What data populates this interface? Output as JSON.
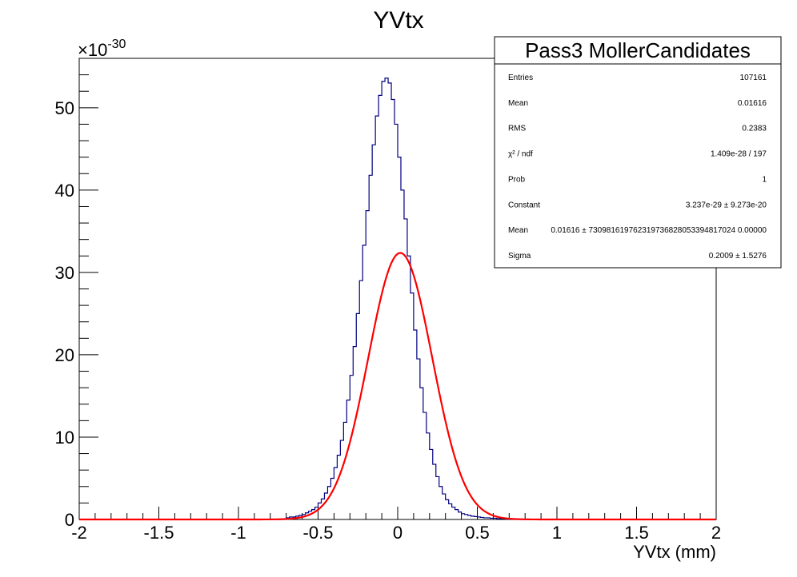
{
  "chart_data": {
    "type": "histogram",
    "title": "YVtx",
    "xlabel": "YVtx (mm)",
    "ylabel": "",
    "y_multiplier": "×10",
    "y_multiplier_exp": "-30",
    "xlim": [
      -2,
      2
    ],
    "ylim": [
      0,
      56
    ],
    "x_ticks": [
      -2,
      -1.5,
      -1,
      -0.5,
      0,
      0.5,
      1,
      1.5,
      2
    ],
    "x_tick_labels": [
      "-2",
      "-1.5",
      "-1",
      "-0.5",
      "0",
      "0.5",
      "1",
      "1.5",
      "2"
    ],
    "y_ticks": [
      0,
      10,
      20,
      30,
      40,
      50
    ],
    "y_tick_labels": [
      "0",
      "10",
      "20",
      "30",
      "40",
      "50"
    ],
    "grid": false,
    "histogram": {
      "color": "#000080",
      "bin_width": 0.02,
      "bin_centers": [
        -0.69,
        -0.67,
        -0.65,
        -0.63,
        -0.61,
        -0.59,
        -0.57,
        -0.55,
        -0.53,
        -0.51,
        -0.49,
        -0.47,
        -0.45,
        -0.43,
        -0.41,
        -0.39,
        -0.37,
        -0.35,
        -0.33,
        -0.31,
        -0.29,
        -0.27,
        -0.25,
        -0.23,
        -0.21,
        -0.19,
        -0.17,
        -0.15,
        -0.13,
        -0.11,
        -0.09,
        -0.07,
        -0.05,
        -0.03,
        -0.01,
        0.01,
        0.03,
        0.05,
        0.07,
        0.09,
        0.11,
        0.13,
        0.15,
        0.17,
        0.19,
        0.21,
        0.23,
        0.25,
        0.27,
        0.29,
        0.31,
        0.33,
        0.35,
        0.37,
        0.39,
        0.41,
        0.43,
        0.45,
        0.47,
        0.49,
        0.51,
        0.53,
        0.55,
        0.57,
        0.59,
        0.61,
        0.63,
        0.65,
        0.67,
        0.69
      ],
      "values": [
        0.2,
        0.3,
        0.3,
        0.4,
        0.5,
        0.6,
        0.8,
        1.0,
        1.2,
        1.5,
        2.0,
        2.5,
        3.2,
        4.0,
        5.0,
        6.3,
        7.8,
        9.6,
        11.8,
        14.5,
        17.5,
        21.0,
        25.0,
        29.0,
        33.3,
        37.5,
        41.8,
        45.5,
        49.0,
        51.5,
        53.2,
        53.6,
        53.0,
        51.0,
        48.0,
        44.0,
        40.0,
        36.5,
        32.0,
        27.5,
        23.0,
        19.5,
        16.0,
        13.0,
        10.5,
        8.5,
        6.7,
        5.2,
        4.0,
        3.1,
        2.4,
        1.9,
        1.5,
        1.2,
        0.9,
        0.7,
        0.6,
        0.5,
        0.4,
        0.35,
        0.3,
        0.25,
        0.2,
        0.2,
        0.15,
        0.15,
        0.1,
        0.1,
        0.1,
        0.1
      ]
    },
    "fit": {
      "function": "gaus",
      "color": "#ff0000",
      "constant": 32.37,
      "mean": 0.01616,
      "sigma": 0.2009
    }
  },
  "stats_box": {
    "title": "Pass3 MollerCandidates",
    "rows": [
      {
        "label": "Entries",
        "value": "107161"
      },
      {
        "label": "Mean",
        "value": "0.01616"
      },
      {
        "label": "RMS",
        "value": "0.2383"
      },
      {
        "label": "χ² / ndf",
        "value": "1.409e-28 / 197"
      },
      {
        "label": "Prob",
        "value": "1"
      },
      {
        "label": "Constant",
        "value": "3.237e-29 ± 9.273e-20"
      },
      {
        "label": "Mean",
        "value": "0.01616 ± 730981619762319736828053394817024 0.00000"
      },
      {
        "label": "Sigma",
        "value": "0.2009 ± 1.5276"
      }
    ]
  }
}
